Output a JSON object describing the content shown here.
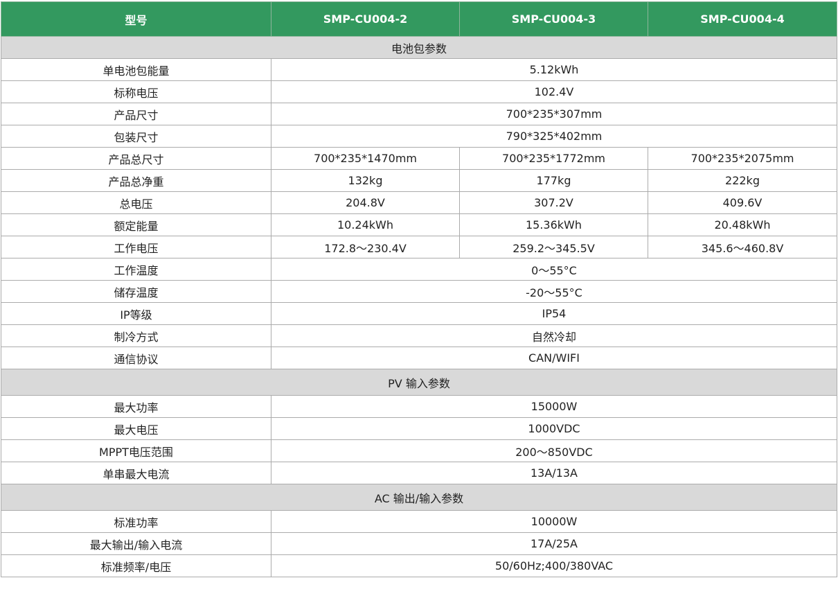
{
  "header": {
    "label": "型号",
    "models": [
      "SMP-CU004-2",
      "SMP-CU004-3",
      "SMP-CU004-4"
    ]
  },
  "colors": {
    "header_bg": "#33995f",
    "section_bg": "#d9d9d9"
  },
  "rows": [
    {
      "type": "section",
      "label": "电池包参数"
    },
    {
      "type": "span",
      "label": "单电池包能量",
      "value": "5.12kWh"
    },
    {
      "type": "span",
      "label": "标称电压",
      "value": "102.4V"
    },
    {
      "type": "span",
      "label": "产品尺寸",
      "value": "700*235*307mm"
    },
    {
      "type": "span",
      "label": "包装尺寸",
      "value": "790*325*402mm"
    },
    {
      "type": "split",
      "label": "产品总尺寸",
      "values": [
        "700*235*1470mm",
        "700*235*1772mm",
        "700*235*2075mm"
      ]
    },
    {
      "type": "split",
      "label": "产品总净重",
      "values": [
        "132kg",
        "177kg",
        "222kg"
      ]
    },
    {
      "type": "split",
      "label": "总电压",
      "values": [
        "204.8V",
        "307.2V",
        "409.6V"
      ]
    },
    {
      "type": "split",
      "label": "额定能量",
      "values": [
        "10.24kWh",
        "15.36kWh",
        "20.48kWh"
      ]
    },
    {
      "type": "split",
      "label": "工作电压",
      "values": [
        "172.8～230.4V",
        "259.2～345.5V",
        "345.6～460.8V"
      ]
    },
    {
      "type": "span",
      "label": "工作温度",
      "value": "0～55°C"
    },
    {
      "type": "span",
      "label": "储存温度",
      "value": "-20～55°C"
    },
    {
      "type": "span",
      "label": "IP等级",
      "value": "IP54"
    },
    {
      "type": "span",
      "label": "制冷方式",
      "value": "自然冷却"
    },
    {
      "type": "span",
      "label": "通信协议",
      "value": "CAN/WIFI"
    },
    {
      "type": "section",
      "label": "PV 输入参数",
      "tall": true
    },
    {
      "type": "span",
      "label": "最大功率",
      "value": "15000W"
    },
    {
      "type": "span",
      "label": "最大电压",
      "value": "1000VDC"
    },
    {
      "type": "span",
      "label": "MPPT电压范围",
      "value": "200～850VDC"
    },
    {
      "type": "span",
      "label": "单串最大电流",
      "value": "13A/13A"
    },
    {
      "type": "section",
      "label": "AC 输出/输入参数",
      "tall": true
    },
    {
      "type": "span",
      "label": "标准功率",
      "value": "10000W"
    },
    {
      "type": "span",
      "label": "最大输出/输入电流",
      "value": "17A/25A"
    },
    {
      "type": "span",
      "label": "标准频率/电压",
      "value": "50/60Hz;400/380VAC"
    }
  ]
}
